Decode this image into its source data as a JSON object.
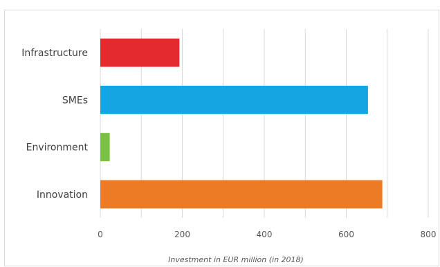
{
  "chart_data": {
    "type": "bar",
    "orientation": "horizontal",
    "title": "",
    "xlabel": "Investment in EUR million (in 2018)",
    "ylabel": "",
    "categories": [
      "Infrastructure",
      "SMEs",
      "Environment",
      "Innovation"
    ],
    "values": [
      193,
      653,
      23,
      688
    ],
    "colors": [
      "#e32b2f",
      "#13a6e2",
      "#7ac143",
      "#ed7a24"
    ],
    "xlim": [
      0,
      800
    ],
    "xticks": [
      0,
      200,
      400,
      600,
      800
    ],
    "grid": true,
    "legend": "none"
  }
}
